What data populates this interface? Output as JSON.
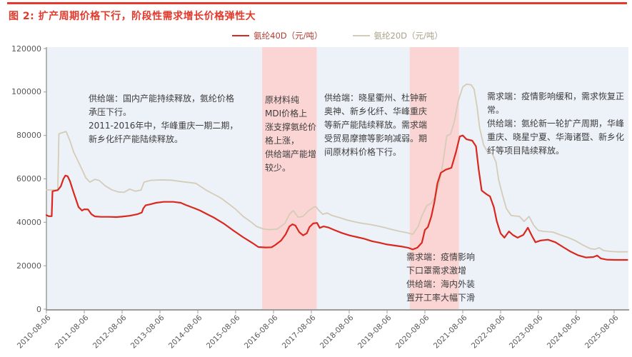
{
  "title": "图 2: 扩产周期价格下行，阶段性需求增长价格弹性大",
  "colors": {
    "title_red": "#e23a2c",
    "series_40d": "#d9281e",
    "series_20d": "#d5ccb8",
    "legend_text_40d": "#b03a30",
    "legend_text_20d": "#aaa188",
    "band_pink": "#fbd5d4",
    "plot_bg": "#edf1f8",
    "axis_line": "#9b9b9b",
    "axis_text": "#595959",
    "annotation_text": "#3d3d3d"
  },
  "annotations": [
    {
      "name": "supply-2011-2016",
      "lines": [
        "供给端：国内产能持续释放，氨纶价格",
        "承压下行。",
        "2011-2016年中，华峰重庆一期二期，",
        "新乡化纤产能陆续释放。"
      ]
    },
    {
      "name": "mdi-cost-push",
      "lines": [
        "原材料纯",
        "MDI价格上",
        "涨支撑氨纶价",
        "格上涨，",
        "供给端产能增",
        "较少。"
      ]
    },
    {
      "name": "supply-expansion-2016-2018",
      "lines": [
        "供给端：晓星衢州、杜钟新",
        "奥神、新乡化纤、华峰重庆",
        "等新产能陆续释放。需求端",
        "受贸易摩擦等影响减弱。期",
        "间原材料价格下行。"
      ]
    },
    {
      "name": "post-covid-recovery",
      "lines": [
        "需求端：疫情影响缓和，需求恢复正",
        "常。",
        "供给端：氨纶新一轮扩产周期，华峰",
        "重庆、晓星宁夏、华海诸暨、新乡化",
        "纤等项目陆续释放。"
      ]
    },
    {
      "name": "covid-mask-demand",
      "lines": [
        "需求端：疫情影响",
        "下口罩需求激增",
        "供给端：海内外装",
        "置开工率大幅下滑"
      ]
    }
  ],
  "chart_data": {
    "type": "line",
    "title": "图 2: 扩产周期价格下行，阶段性需求增长价格弹性大",
    "xlabel": "",
    "ylabel": "元/吨",
    "ylim": [
      0,
      120000
    ],
    "y_ticks": [
      0,
      20000,
      40000,
      60000,
      80000,
      100000,
      120000
    ],
    "x_unit": "years since 2010-08-06",
    "x_tick_labels": [
      "2010-08-06",
      "2011-08-06",
      "2012-08-06",
      "2013-08-06",
      "2014-08-06",
      "2015-08-06",
      "2016-08-06",
      "2017-08-06",
      "2018-08-06",
      "2019-08-06",
      "2020-08-06",
      "2021-08-06",
      "2022-08-06",
      "2023-08-06",
      "2024-08-06",
      "2025-08-06"
    ],
    "grid": false,
    "legend_position": "top-center",
    "highlight_bands": [
      {
        "label": "2016-04 to 2017-09",
        "t_start": 5.7,
        "t_end": 7.14
      },
      {
        "label": "2020-03 to 2021-07",
        "t_start": 9.6,
        "t_end": 10.9
      }
    ],
    "series": [
      {
        "name": "氨纶40D（元/吨）",
        "color": "#d9281e",
        "width": 2.2,
        "points": [
          [
            0,
            43300
          ],
          [
            0.06,
            42800
          ],
          [
            0.14,
            42800
          ],
          [
            0.16,
            54300
          ],
          [
            0.3,
            54800
          ],
          [
            0.38,
            56500
          ],
          [
            0.45,
            60000
          ],
          [
            0.5,
            61500
          ],
          [
            0.56,
            61200
          ],
          [
            0.62,
            59000
          ],
          [
            0.72,
            53600
          ],
          [
            0.85,
            47000
          ],
          [
            0.94,
            45400
          ],
          [
            1.0,
            46000
          ],
          [
            1.1,
            45900
          ],
          [
            1.19,
            43700
          ],
          [
            1.28,
            42700
          ],
          [
            1.45,
            42500
          ],
          [
            1.65,
            42500
          ],
          [
            1.85,
            42400
          ],
          [
            2.0,
            42600
          ],
          [
            2.2,
            43000
          ],
          [
            2.4,
            43700
          ],
          [
            2.52,
            44500
          ],
          [
            2.56,
            46400
          ],
          [
            2.62,
            47800
          ],
          [
            2.75,
            48300
          ],
          [
            2.9,
            49000
          ],
          [
            3.1,
            49400
          ],
          [
            3.35,
            49400
          ],
          [
            3.55,
            49000
          ],
          [
            3.68,
            48000
          ],
          [
            3.92,
            46400
          ],
          [
            4.06,
            45400
          ],
          [
            4.25,
            43700
          ],
          [
            4.43,
            42100
          ],
          [
            4.68,
            39500
          ],
          [
            4.94,
            36200
          ],
          [
            5.19,
            33200
          ],
          [
            5.43,
            30600
          ],
          [
            5.6,
            28600
          ],
          [
            5.8,
            28400
          ],
          [
            5.95,
            28500
          ],
          [
            6.05,
            29600
          ],
          [
            6.2,
            31600
          ],
          [
            6.32,
            34500
          ],
          [
            6.42,
            38100
          ],
          [
            6.5,
            39100
          ],
          [
            6.58,
            38500
          ],
          [
            6.68,
            35500
          ],
          [
            6.78,
            34000
          ],
          [
            6.88,
            34900
          ],
          [
            6.95,
            37800
          ],
          [
            7.05,
            39500
          ],
          [
            7.15,
            39700
          ],
          [
            7.22,
            37400
          ],
          [
            7.32,
            38100
          ],
          [
            7.45,
            37600
          ],
          [
            7.6,
            36500
          ],
          [
            7.8,
            35100
          ],
          [
            8.0,
            34000
          ],
          [
            8.2,
            33200
          ],
          [
            8.4,
            32400
          ],
          [
            8.6,
            31300
          ],
          [
            8.8,
            30600
          ],
          [
            9.0,
            29800
          ],
          [
            9.2,
            29300
          ],
          [
            9.4,
            28800
          ],
          [
            9.55,
            28300
          ],
          [
            9.68,
            27500
          ],
          [
            9.8,
            28300
          ],
          [
            9.92,
            30600
          ],
          [
            10.0,
            36500
          ],
          [
            10.08,
            37800
          ],
          [
            10.17,
            42700
          ],
          [
            10.25,
            49300
          ],
          [
            10.33,
            57900
          ],
          [
            10.42,
            62800
          ],
          [
            10.55,
            64200
          ],
          [
            10.7,
            65100
          ],
          [
            10.82,
            72300
          ],
          [
            10.92,
            79500
          ],
          [
            11.0,
            80000
          ],
          [
            11.1,
            78200
          ],
          [
            11.25,
            77600
          ],
          [
            11.35,
            75000
          ],
          [
            11.42,
            64400
          ],
          [
            11.5,
            54600
          ],
          [
            11.62,
            53000
          ],
          [
            11.72,
            51900
          ],
          [
            11.82,
            47000
          ],
          [
            11.9,
            40400
          ],
          [
            12.0,
            34900
          ],
          [
            12.1,
            32900
          ],
          [
            12.22,
            35800
          ],
          [
            12.32,
            34200
          ],
          [
            12.45,
            32900
          ],
          [
            12.6,
            34200
          ],
          [
            12.72,
            37500
          ],
          [
            12.82,
            34000
          ],
          [
            12.92,
            30800
          ],
          [
            13.05,
            31600
          ],
          [
            13.25,
            32000
          ],
          [
            13.45,
            30800
          ],
          [
            13.65,
            28600
          ],
          [
            13.85,
            26500
          ],
          [
            14.05,
            24800
          ],
          [
            14.25,
            23800
          ],
          [
            14.45,
            24000
          ],
          [
            14.55,
            24700
          ],
          [
            14.65,
            23300
          ],
          [
            14.8,
            22800
          ],
          [
            15.0,
            22700
          ],
          [
            15.35,
            22700
          ]
        ]
      },
      {
        "name": "氨纶20D（元/吨）",
        "color": "#d5ccb8",
        "width": 1.8,
        "points": [
          [
            0,
            54900
          ],
          [
            0.15,
            54900
          ],
          [
            0.3,
            54900
          ],
          [
            0.33,
            80700
          ],
          [
            0.42,
            81300
          ],
          [
            0.52,
            81800
          ],
          [
            0.62,
            77600
          ],
          [
            0.72,
            72300
          ],
          [
            0.85,
            67700
          ],
          [
            0.95,
            64000
          ],
          [
            1.04,
            60500
          ],
          [
            1.15,
            58500
          ],
          [
            1.28,
            59800
          ],
          [
            1.4,
            59200
          ],
          [
            1.55,
            56800
          ],
          [
            1.72,
            55000
          ],
          [
            1.9,
            54000
          ],
          [
            2.05,
            53800
          ],
          [
            2.2,
            55300
          ],
          [
            2.35,
            54300
          ],
          [
            2.5,
            54800
          ],
          [
            2.58,
            58500
          ],
          [
            2.75,
            59300
          ],
          [
            3.0,
            59500
          ],
          [
            3.3,
            59400
          ],
          [
            3.55,
            58800
          ],
          [
            3.8,
            58300
          ],
          [
            3.95,
            57900
          ],
          [
            4.1,
            56200
          ],
          [
            4.22,
            54800
          ],
          [
            4.35,
            53600
          ],
          [
            4.6,
            51300
          ],
          [
            4.8,
            48700
          ],
          [
            5.0,
            46000
          ],
          [
            5.2,
            42700
          ],
          [
            5.4,
            40200
          ],
          [
            5.55,
            38100
          ],
          [
            5.72,
            37000
          ],
          [
            5.9,
            36600
          ],
          [
            6.1,
            36900
          ],
          [
            6.3,
            39500
          ],
          [
            6.42,
            43700
          ],
          [
            6.52,
            45400
          ],
          [
            6.65,
            42300
          ],
          [
            6.78,
            42700
          ],
          [
            6.92,
            45200
          ],
          [
            7.05,
            46800
          ],
          [
            7.12,
            47200
          ],
          [
            7.2,
            45400
          ],
          [
            7.3,
            43700
          ],
          [
            7.42,
            44300
          ],
          [
            7.55,
            43100
          ],
          [
            7.75,
            42100
          ],
          [
            7.95,
            41000
          ],
          [
            8.15,
            40200
          ],
          [
            8.35,
            39500
          ],
          [
            8.55,
            39000
          ],
          [
            8.75,
            38300
          ],
          [
            8.95,
            37500
          ],
          [
            9.15,
            36600
          ],
          [
            9.35,
            35800
          ],
          [
            9.52,
            35200
          ],
          [
            9.68,
            34500
          ],
          [
            9.82,
            38000
          ],
          [
            9.92,
            43000
          ],
          [
            10.05,
            47700
          ],
          [
            10.17,
            48800
          ],
          [
            10.28,
            52000
          ],
          [
            10.38,
            57900
          ],
          [
            10.48,
            67700
          ],
          [
            10.58,
            79900
          ],
          [
            10.68,
            80600
          ],
          [
            10.78,
            86500
          ],
          [
            10.88,
            95700
          ],
          [
            11.0,
            102300
          ],
          [
            11.1,
            103600
          ],
          [
            11.22,
            103300
          ],
          [
            11.3,
            101300
          ],
          [
            11.38,
            93000
          ],
          [
            11.45,
            83200
          ],
          [
            11.55,
            75600
          ],
          [
            11.65,
            72500
          ],
          [
            11.78,
            71700
          ],
          [
            11.88,
            67700
          ],
          [
            11.95,
            59500
          ],
          [
            12.05,
            52600
          ],
          [
            12.15,
            46400
          ],
          [
            12.28,
            43100
          ],
          [
            12.5,
            42700
          ],
          [
            12.62,
            40400
          ],
          [
            12.75,
            42700
          ],
          [
            12.88,
            38500
          ],
          [
            13.0,
            36200
          ],
          [
            13.15,
            35800
          ],
          [
            13.38,
            35500
          ],
          [
            13.58,
            34200
          ],
          [
            13.78,
            33000
          ],
          [
            13.98,
            31500
          ],
          [
            14.18,
            29500
          ],
          [
            14.38,
            27800
          ],
          [
            14.5,
            27600
          ],
          [
            14.6,
            28300
          ],
          [
            14.72,
            27000
          ],
          [
            14.9,
            26600
          ],
          [
            15.1,
            26400
          ],
          [
            15.35,
            26400
          ]
        ]
      }
    ]
  }
}
